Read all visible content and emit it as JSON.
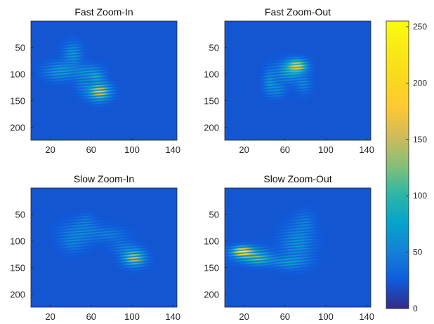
{
  "chart_data": [
    {
      "type": "heatmap",
      "title": "Fast Zoom-In",
      "xlim": [
        1,
        144
      ],
      "ylim": [
        1,
        224
      ],
      "y_reversed": true,
      "xticks": [
        20,
        60,
        100,
        140
      ],
      "yticks": [
        50,
        100,
        150,
        200
      ],
      "grid": false,
      "background_value": 22,
      "blobs": [
        {
          "x": 30,
          "y": 95,
          "sx": 10,
          "sy": 11,
          "peak": 95
        },
        {
          "x": 42,
          "y": 62,
          "sx": 6,
          "sy": 14,
          "peak": 85
        },
        {
          "x": 58,
          "y": 95,
          "sx": 9,
          "sy": 9,
          "peak": 70
        },
        {
          "x": 52,
          "y": 118,
          "sx": 5,
          "sy": 14,
          "peak": 55
        },
        {
          "x": 68,
          "y": 133,
          "sx": 7,
          "sy": 11,
          "peak": 205
        },
        {
          "x": 65,
          "y": 105,
          "sx": 5,
          "sy": 6,
          "peak": 90
        }
      ]
    },
    {
      "type": "heatmap",
      "title": "Fast Zoom-Out",
      "xlim": [
        1,
        144
      ],
      "ylim": [
        1,
        224
      ],
      "y_reversed": true,
      "xticks": [
        20,
        60,
        100,
        140
      ],
      "yticks": [
        50,
        100,
        150,
        200
      ],
      "grid": false,
      "background_value": 22,
      "blobs": [
        {
          "x": 72,
          "y": 85,
          "sx": 6,
          "sy": 8,
          "peak": 215
        },
        {
          "x": 64,
          "y": 95,
          "sx": 9,
          "sy": 13,
          "peak": 105
        },
        {
          "x": 45,
          "y": 115,
          "sx": 4,
          "sy": 15,
          "peak": 80
        },
        {
          "x": 53,
          "y": 130,
          "sx": 5,
          "sy": 10,
          "peak": 65
        },
        {
          "x": 78,
          "y": 120,
          "sx": 5,
          "sy": 12,
          "peak": 60
        }
      ]
    },
    {
      "type": "heatmap",
      "title": "Slow Zoom-In",
      "xlim": [
        1,
        144
      ],
      "ylim": [
        1,
        224
      ],
      "y_reversed": true,
      "xticks": [
        20,
        60,
        100,
        140
      ],
      "yticks": [
        50,
        100,
        150,
        200
      ],
      "grid": false,
      "background_value": 22,
      "blobs": [
        {
          "x": 102,
          "y": 132,
          "sx": 7,
          "sy": 10,
          "peak": 185
        },
        {
          "x": 50,
          "y": 82,
          "sx": 13,
          "sy": 14,
          "peak": 65
        },
        {
          "x": 42,
          "y": 105,
          "sx": 8,
          "sy": 12,
          "peak": 55
        },
        {
          "x": 78,
          "y": 88,
          "sx": 11,
          "sy": 9,
          "peak": 55
        },
        {
          "x": 92,
          "y": 112,
          "sx": 8,
          "sy": 9,
          "peak": 55
        },
        {
          "x": 55,
          "y": 60,
          "sx": 5,
          "sy": 8,
          "peak": 45
        }
      ]
    },
    {
      "type": "heatmap",
      "title": "Slow Zoom-Out",
      "xlim": [
        1,
        144
      ],
      "ylim": [
        1,
        224
      ],
      "y_reversed": true,
      "xticks": [
        20,
        60,
        100,
        140
      ],
      "yticks": [
        50,
        100,
        150,
        200
      ],
      "grid": false,
      "background_value": 22,
      "blobs": [
        {
          "x": 18,
          "y": 120,
          "sx": 6,
          "sy": 6,
          "peak": 230
        },
        {
          "x": 25,
          "y": 125,
          "sx": 12,
          "sy": 10,
          "peak": 115
        },
        {
          "x": 35,
          "y": 135,
          "sx": 8,
          "sy": 7,
          "peak": 100
        },
        {
          "x": 72,
          "y": 105,
          "sx": 10,
          "sy": 24,
          "peak": 80
        },
        {
          "x": 62,
          "y": 140,
          "sx": 12,
          "sy": 8,
          "peak": 75
        },
        {
          "x": 80,
          "y": 65,
          "sx": 6,
          "sy": 14,
          "peak": 50
        }
      ]
    }
  ],
  "colorbar": {
    "colormap": "parula",
    "limits": [
      0,
      255
    ],
    "ticks": [
      0,
      50,
      100,
      150,
      200,
      250
    ],
    "position": "right"
  }
}
